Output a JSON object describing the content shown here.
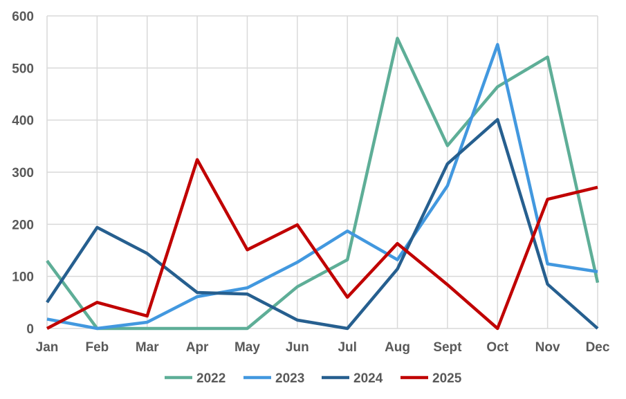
{
  "chart_data": {
    "type": "line",
    "title": "",
    "xlabel": "",
    "ylabel": "",
    "categories": [
      "Jan",
      "Feb",
      "Mar",
      "Apr",
      "May",
      "Jun",
      "Jul",
      "Aug",
      "Sept",
      "Oct",
      "Nov",
      "Dec"
    ],
    "ylim": [
      0,
      600
    ],
    "yticks": [
      0,
      100,
      200,
      300,
      400,
      500,
      600
    ],
    "grid": true,
    "legend_position": "bottom",
    "series": [
      {
        "name": "2022",
        "color": "#5eae97",
        "values": [
          130,
          0,
          0,
          0,
          0,
          80,
          132,
          557,
          351,
          464,
          521,
          88
        ]
      },
      {
        "name": "2023",
        "color": "#4298df",
        "values": [
          18,
          0,
          12,
          61,
          78,
          127,
          187,
          132,
          274,
          545,
          124,
          109
        ]
      },
      {
        "name": "2024",
        "color": "#265f8f",
        "values": [
          50,
          194,
          144,
          69,
          66,
          16,
          0,
          114,
          316,
          401,
          85,
          0
        ]
      },
      {
        "name": "2025",
        "color": "#c00000",
        "values": [
          0,
          50,
          24,
          324,
          151,
          199,
          60,
          163,
          84,
          0,
          248,
          271
        ]
      }
    ]
  }
}
